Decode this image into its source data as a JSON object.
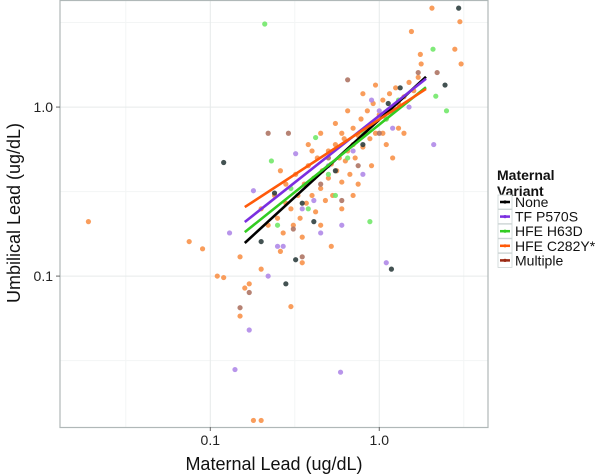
{
  "chart_data": {
    "type": "scatter",
    "xlabel": "Maternal Lead (ug/dL)",
    "ylabel": "Umbilical Lead (ug/dL)",
    "xscale": "log10",
    "yscale": "log10",
    "xlim": [
      0.0129,
      4.4
    ],
    "ylim": [
      0.0128,
      4.3
    ],
    "xticks": [
      {
        "value": 0.1,
        "label": "0.1"
      },
      {
        "value": 1.0,
        "label": "1.0"
      }
    ],
    "yticks": [
      {
        "value": 0.1,
        "label": "0.1"
      },
      {
        "value": 1.0,
        "label": "1.0"
      }
    ],
    "grid": true,
    "legend": {
      "title_lines": [
        "Maternal",
        "Variant"
      ],
      "placement": "right",
      "entries": [
        {
          "name": "None",
          "color": "#000000"
        },
        {
          "name": "TF P570S",
          "color": "#7b2fe0"
        },
        {
          "name": "HFE H63D",
          "color": "#33cc22"
        },
        {
          "name": "HFE C282Y*",
          "color": "#ff5a0a"
        },
        {
          "name": "Multiple",
          "color": "#9b2a14"
        }
      ]
    },
    "point_colors": {
      "None": "#2f3f3f",
      "TF P570S": "#b08ae8",
      "HFE H63D": "#72e86a",
      "HFE C282Y*": "#f8924a",
      "Multiple": "#ae7464"
    },
    "fit_lines": [
      {
        "series": "None",
        "x": [
          0.16,
          1.89
        ],
        "y": [
          0.157,
          1.51
        ]
      },
      {
        "series": "TF P570S",
        "x": [
          0.16,
          1.89
        ],
        "y": [
          0.209,
          1.47
        ]
      },
      {
        "series": "HFE H63D",
        "x": [
          0.16,
          1.89
        ],
        "y": [
          0.182,
          1.31
        ]
      },
      {
        "series": "HFE C282Y*",
        "x": [
          0.16,
          1.89
        ],
        "y": [
          0.256,
          1.28
        ]
      }
    ],
    "series": [
      {
        "name": "HFE C282Y*",
        "points": [
          [
            0.019,
            0.21
          ],
          [
            0.075,
            0.16
          ],
          [
            0.09,
            0.145
          ],
          [
            0.11,
            0.1
          ],
          [
            0.12,
            0.098
          ],
          [
            0.15,
            0.13
          ],
          [
            0.16,
            0.085
          ],
          [
            0.17,
            0.09
          ],
          [
            0.15,
            0.058
          ],
          [
            0.18,
            0.014
          ],
          [
            0.2,
            0.014
          ],
          [
            0.2,
            0.11
          ],
          [
            0.3,
            0.066
          ],
          [
            0.26,
            0.42
          ],
          [
            2.05,
            3.85
          ],
          [
            3.0,
            3.2
          ],
          [
            2.8,
            2.2
          ],
          [
            3.05,
            1.8
          ],
          [
            1.55,
            2.8
          ],
          [
            1.75,
            2.05
          ],
          [
            1.77,
            1.8
          ],
          [
            0.2,
            0.25
          ],
          [
            0.22,
            0.2
          ],
          [
            0.24,
            0.3
          ],
          [
            0.25,
            0.22
          ],
          [
            0.27,
            0.18
          ],
          [
            0.28,
            0.35
          ],
          [
            0.3,
            0.25
          ],
          [
            0.31,
            0.2
          ],
          [
            0.32,
            0.4
          ],
          [
            0.33,
            0.3
          ],
          [
            0.34,
            0.22
          ],
          [
            0.35,
            0.17
          ],
          [
            0.36,
            0.35
          ],
          [
            0.37,
            0.27
          ],
          [
            0.38,
            0.45
          ],
          [
            0.4,
            0.3
          ],
          [
            0.41,
            0.38
          ],
          [
            0.42,
            0.24
          ],
          [
            0.43,
            0.5
          ],
          [
            0.45,
            0.33
          ],
          [
            0.46,
            0.42
          ],
          [
            0.48,
            0.28
          ],
          [
            0.5,
            0.55
          ],
          [
            0.5,
            0.38
          ],
          [
            0.52,
            0.46
          ],
          [
            0.53,
            0.3
          ],
          [
            0.55,
            0.6
          ],
          [
            0.56,
            0.42
          ],
          [
            0.58,
            0.5
          ],
          [
            0.6,
            0.36
          ],
          [
            0.62,
            0.65
          ],
          [
            0.63,
            0.48
          ],
          [
            0.65,
            0.55
          ],
          [
            0.67,
            0.4
          ],
          [
            0.7,
            0.75
          ],
          [
            0.7,
            0.6
          ],
          [
            0.72,
            0.5
          ],
          [
            0.75,
            0.68
          ],
          [
            0.78,
            0.85
          ],
          [
            0.8,
            0.58
          ],
          [
            0.82,
            0.72
          ],
          [
            0.85,
            0.95
          ],
          [
            0.88,
            0.65
          ],
          [
            0.9,
            0.8
          ],
          [
            0.92,
            1.05
          ],
          [
            0.95,
            0.7
          ],
          [
            1.0,
            0.9
          ],
          [
            1.05,
            1.1
          ],
          [
            1.1,
            0.85
          ],
          [
            1.15,
            1.2
          ],
          [
            1.2,
            0.95
          ],
          [
            1.25,
            1.3
          ],
          [
            1.3,
            1.05
          ],
          [
            1.4,
            1.15
          ],
          [
            1.5,
            1.4
          ],
          [
            1.6,
            1.25
          ],
          [
            1.7,
            1.5
          ],
          [
            1.3,
            0.75
          ],
          [
            1.1,
            0.6
          ],
          [
            0.9,
            0.45
          ],
          [
            0.75,
            0.35
          ],
          [
            0.6,
            0.25
          ],
          [
            0.45,
            0.2
          ],
          [
            0.35,
            0.12
          ],
          [
            0.26,
            0.14
          ],
          [
            0.55,
            0.8
          ],
          [
            0.45,
            0.7
          ],
          [
            0.38,
            0.6
          ],
          [
            0.8,
            1.2
          ],
          [
            0.95,
            1.35
          ],
          [
            0.65,
            0.95
          ],
          [
            1.2,
            0.5
          ],
          [
            0.52,
            0.15
          ],
          [
            0.7,
            0.3
          ],
          [
            1.4,
            0.7
          ],
          [
            0.28,
            0.27
          ],
          [
            0.4,
            0.55
          ],
          [
            0.6,
            0.7
          ],
          [
            1.05,
            0.7
          ]
        ]
      },
      {
        "name": "TF P570S",
        "points": [
          [
            0.18,
            0.32
          ],
          [
            0.13,
            0.18
          ],
          [
            0.17,
            0.048
          ],
          [
            0.14,
            0.028
          ],
          [
            0.22,
            0.1
          ],
          [
            0.59,
            0.027
          ],
          [
            2.1,
            0.6
          ],
          [
            1.1,
            0.12
          ],
          [
            0.25,
            0.15
          ],
          [
            0.27,
            0.15
          ],
          [
            0.32,
            0.53
          ],
          [
            0.41,
            0.28
          ],
          [
            0.5,
            0.45
          ],
          [
            0.7,
            0.55
          ],
          [
            0.9,
            1.1
          ],
          [
            1.2,
            0.75
          ],
          [
            1.5,
            1.0
          ],
          [
            0.6,
            0.2
          ],
          [
            0.8,
            0.4
          ],
          [
            1.0,
            0.95
          ],
          [
            0.35,
            0.25
          ],
          [
            0.45,
            0.18
          ]
        ]
      },
      {
        "name": "HFE H63D",
        "points": [
          [
            0.21,
            3.1
          ],
          [
            0.23,
            0.48
          ],
          [
            2.5,
            0.95
          ],
          [
            2.16,
            1.16
          ],
          [
            2.08,
            2.2
          ],
          [
            0.88,
            0.21
          ],
          [
            0.42,
            0.66
          ],
          [
            0.3,
            0.33
          ],
          [
            0.5,
            0.4
          ],
          [
            0.65,
            0.5
          ],
          [
            0.8,
            0.7
          ],
          [
            1.1,
            0.85
          ],
          [
            0.38,
            0.25
          ],
          [
            0.55,
            0.3
          ],
          [
            1.3,
            1.1
          ],
          [
            0.25,
            0.2
          ]
        ]
      },
      {
        "name": "Multiple",
        "points": [
          [
            0.22,
            0.7
          ],
          [
            0.29,
            0.7
          ],
          [
            0.17,
            0.08
          ],
          [
            0.15,
            0.065
          ],
          [
            0.31,
            0.19
          ],
          [
            1.7,
            1.6
          ],
          [
            2.2,
            1.6
          ],
          [
            0.65,
            1.45
          ],
          [
            0.35,
            0.13
          ],
          [
            0.5,
            0.5
          ],
          [
            0.75,
            0.45
          ],
          [
            0.45,
            0.35
          ],
          [
            1.0,
            0.7
          ],
          [
            0.6,
            0.28
          ]
        ]
      },
      {
        "name": "None",
        "points": [
          [
            0.12,
            0.47
          ],
          [
            0.2,
            0.16
          ],
          [
            0.24,
            0.31
          ],
          [
            0.28,
            0.09
          ],
          [
            0.32,
            0.125
          ],
          [
            1.18,
            0.11
          ],
          [
            2.95,
            3.85
          ],
          [
            2.45,
            1.35
          ],
          [
            1.33,
            1.3
          ],
          [
            1.13,
            1.05
          ],
          [
            0.41,
            0.21
          ],
          [
            0.55,
            0.42
          ],
          [
            0.8,
            0.6
          ],
          [
            0.35,
            0.27
          ]
        ]
      }
    ]
  }
}
